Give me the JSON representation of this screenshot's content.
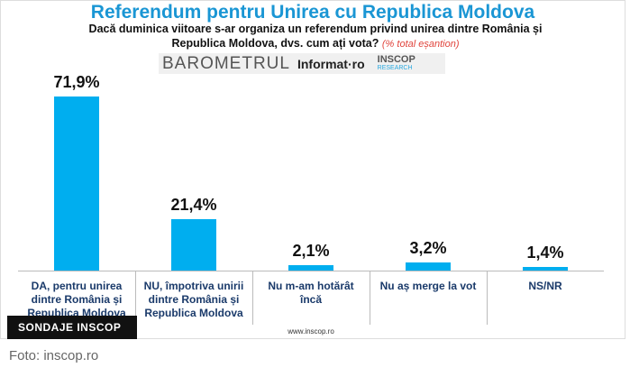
{
  "chart_data": {
    "type": "bar",
    "title": "Referendum pentru Unirea cu Republica Moldova",
    "subtitle": "Dacă duminica viitoare s-ar organiza un referendum privind unirea dintre România și Republica Moldova, dvs. cum ați vota?",
    "subtitle_note": "(% total eșantion)",
    "logos": [
      "BAROMETRUL",
      "Informat·ro",
      "INSCOP",
      "RESEARCH"
    ],
    "categories": [
      "DA, pentru unirea dintre România și Republica Moldova",
      "NU, împotriva unirii dintre România și Republica Moldova",
      "Nu m-am hotărât încă",
      "Nu aș merge la vot",
      "NS/NR"
    ],
    "values": [
      71.9,
      21.4,
      2.1,
      3.2,
      1.4
    ],
    "value_labels": [
      "71,9%",
      "21,4%",
      "2,1%",
      "3,2%",
      "1,4%"
    ],
    "color": "#00aeef",
    "footer": "www.inscop.ro"
  },
  "page": {
    "badge": "SONDAJE INSCOP",
    "caption": "Foto: inscop.ro"
  }
}
